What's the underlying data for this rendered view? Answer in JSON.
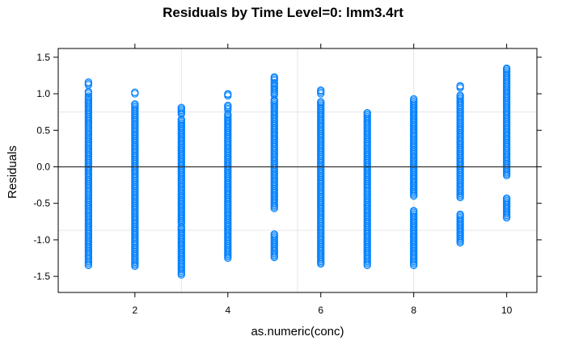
{
  "chart_data": {
    "type": "scatter",
    "title": "Residuals by Time Level=0: lmm3.4rt",
    "xlabel": "as.numeric(conc)",
    "ylabel": "Residuals",
    "xlim": [
      0.35,
      10.65
    ],
    "ylim": [
      -1.72,
      1.62
    ],
    "x_ticks": [
      2,
      4,
      6,
      8,
      10
    ],
    "y_ticks": [
      -1.5,
      -1.0,
      -0.5,
      0.0,
      0.5,
      1.0,
      1.5
    ],
    "y_tick_labels": [
      "-1.5",
      "-1.0",
      "-0.5",
      "0.0",
      "0.5",
      "1.0",
      "1.5"
    ],
    "reference_line_y": 0,
    "grid": true,
    "reference_grid_x": [
      3,
      5.5,
      8
    ],
    "reference_grid_y": [
      -0.87,
      0.75
    ],
    "marker": "open-circle",
    "point_color": "#0080ff",
    "series": [
      {
        "x": 1,
        "ranges": [
          [
            -1.35,
            0.97
          ],
          [
            1.0,
            1.03
          ],
          [
            1.12,
            1.16
          ]
        ]
      },
      {
        "x": 2,
        "ranges": [
          [
            -1.36,
            0.86
          ],
          [
            1.0,
            1.02
          ]
        ]
      },
      {
        "x": 3,
        "ranges": [
          [
            -1.48,
            -0.82
          ],
          [
            -0.78,
            0.65
          ],
          [
            0.72,
            0.81
          ]
        ]
      },
      {
        "x": 4,
        "ranges": [
          [
            -1.25,
            0.72
          ],
          [
            0.78,
            0.84
          ],
          [
            0.97,
            1.0
          ]
        ]
      },
      {
        "x": 5,
        "ranges": [
          [
            -1.24,
            -0.92
          ],
          [
            -0.57,
            0.92
          ],
          [
            0.98,
            1.15
          ],
          [
            1.18,
            1.23
          ]
        ]
      },
      {
        "x": 6,
        "ranges": [
          [
            -1.33,
            0.89
          ],
          [
            1.0,
            1.05
          ]
        ]
      },
      {
        "x": 7,
        "ranges": [
          [
            -1.35,
            0.74
          ]
        ]
      },
      {
        "x": 8,
        "ranges": [
          [
            -1.35,
            -0.6
          ],
          [
            -0.4,
            0.93
          ]
        ]
      },
      {
        "x": 9,
        "ranges": [
          [
            -1.04,
            -0.65
          ],
          [
            -0.42,
            0.98
          ],
          [
            1.08,
            1.11
          ]
        ]
      },
      {
        "x": 10,
        "ranges": [
          [
            -0.7,
            -0.43
          ],
          [
            -0.12,
            1.35
          ]
        ]
      }
    ]
  }
}
